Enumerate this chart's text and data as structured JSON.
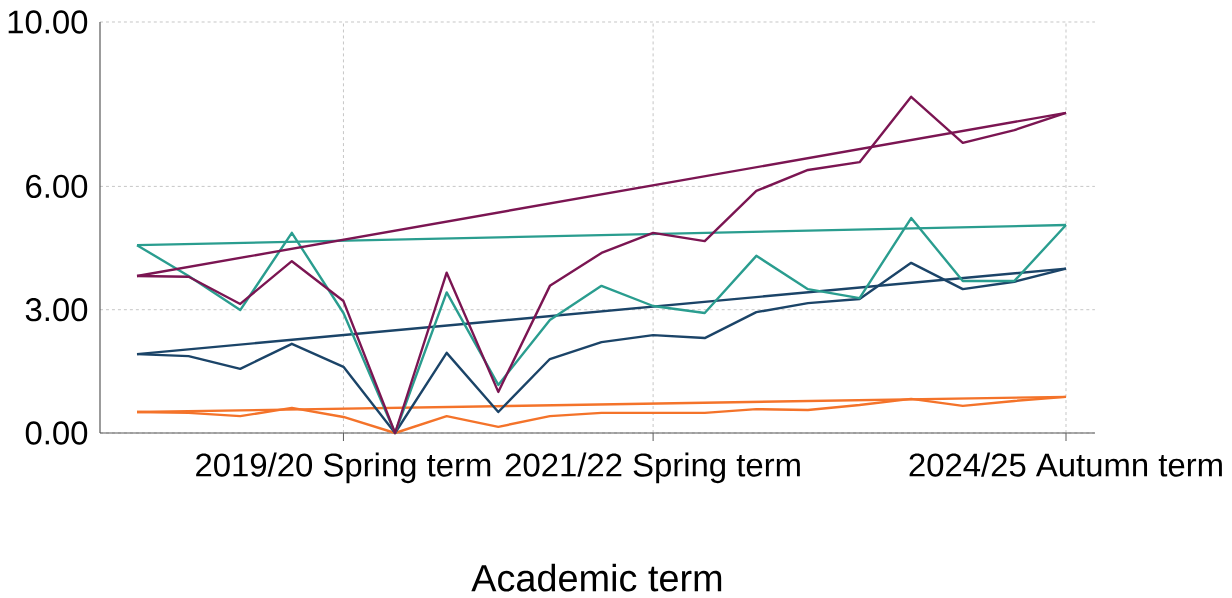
{
  "chart_data": {
    "type": "line",
    "xlabel": "Academic term",
    "categories": [
      null,
      null,
      null,
      null,
      "2019/20 Spring term",
      null,
      null,
      null,
      null,
      null,
      "2021/22 Spring term",
      null,
      null,
      null,
      null,
      null,
      null,
      null,
      "2024/25 Autumn term"
    ],
    "ylim": [
      0,
      10
    ],
    "yticks": [
      {
        "value": 0,
        "label": "0.00"
      },
      {
        "value": 3,
        "label": "3.00"
      },
      {
        "value": 6,
        "label": "6.00"
      },
      {
        "value": 10,
        "label": "10.00"
      }
    ],
    "grid": true,
    "marker": "none",
    "line_style": "solid",
    "series": [
      {
        "color": "#f4732a",
        "values": [
          0.51,
          0.49,
          0.41,
          0.61,
          0.39,
          0,
          0.41,
          0.15,
          0.41,
          0.49,
          0.49,
          0.49,
          0.58,
          0.56,
          0.68,
          0.83,
          0.66,
          0.78,
          0.88
        ]
      },
      {
        "color": "#f4732a",
        "values": [
          0.51,
          null,
          null,
          null,
          null,
          null,
          null,
          null,
          null,
          null,
          null,
          null,
          null,
          null,
          null,
          null,
          null,
          null,
          0.88
        ]
      },
      {
        "color": "#1b4468",
        "values": [
          1.92,
          1.87,
          1.56,
          2.17,
          1.61,
          0,
          1.95,
          0.51,
          1.8,
          2.21,
          2.38,
          2.31,
          2.94,
          3.16,
          3.26,
          4.14,
          3.5,
          3.68,
          4.0
        ]
      },
      {
        "color": "#1b4468",
        "values": [
          1.92,
          null,
          null,
          null,
          null,
          null,
          null,
          null,
          null,
          null,
          null,
          null,
          null,
          null,
          null,
          null,
          null,
          null,
          4.0
        ]
      },
      {
        "color": "#2a9d8f",
        "values": [
          4.57,
          3.82,
          2.99,
          4.87,
          2.92,
          0,
          3.42,
          1.17,
          2.75,
          3.58,
          3.09,
          2.92,
          4.31,
          3.5,
          3.28,
          5.23,
          3.7,
          3.7,
          5.06
        ]
      },
      {
        "color": "#2a9d8f",
        "values": [
          4.57,
          null,
          null,
          null,
          null,
          null,
          null,
          null,
          null,
          null,
          null,
          null,
          null,
          null,
          null,
          null,
          null,
          null,
          5.06
        ]
      },
      {
        "color": "#7b1552",
        "values": [
          3.82,
          3.8,
          3.14,
          4.18,
          3.21,
          0,
          3.9,
          1.0,
          3.58,
          4.38,
          4.87,
          4.67,
          5.89,
          6.4,
          6.59,
          8.18,
          7.06,
          7.37,
          7.79
        ]
      },
      {
        "color": "#7b1552",
        "values": [
          3.82,
          null,
          null,
          null,
          null,
          null,
          null,
          null,
          null,
          null,
          null,
          null,
          null,
          null,
          null,
          null,
          null,
          null,
          7.79
        ]
      }
    ]
  }
}
